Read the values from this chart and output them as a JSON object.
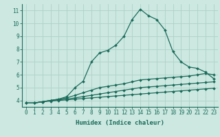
{
  "xlabel": "Humidex (Indice chaleur)",
  "bg_color": "#cce8e0",
  "grid_color": "#aaccC4",
  "line_color": "#1a6b5a",
  "xlim": [
    -0.5,
    23.5
  ],
  "ylim": [
    3.5,
    11.5
  ],
  "yticks": [
    4,
    5,
    6,
    7,
    8,
    9,
    10,
    11
  ],
  "xticks": [
    0,
    1,
    2,
    3,
    4,
    5,
    6,
    7,
    8,
    9,
    10,
    11,
    12,
    13,
    14,
    15,
    16,
    17,
    18,
    19,
    20,
    21,
    22,
    23
  ],
  "series": [
    {
      "x": [
        0,
        1,
        2,
        3,
        4,
        5,
        6,
        7,
        8,
        9,
        10,
        11,
        12,
        13,
        14,
        15,
        16,
        17,
        18,
        19,
        20,
        21,
        22,
        23
      ],
      "y": [
        3.8,
        3.8,
        3.9,
        4.0,
        4.1,
        4.3,
        5.0,
        5.5,
        7.0,
        7.7,
        7.9,
        8.3,
        9.0,
        10.3,
        11.1,
        10.6,
        10.3,
        9.5,
        7.8,
        7.0,
        6.6,
        6.5,
        6.2,
        5.7
      ]
    },
    {
      "x": [
        0,
        1,
        2,
        3,
        4,
        5,
        6,
        7,
        8,
        9,
        10,
        11,
        12,
        13,
        14,
        15,
        16,
        17,
        18,
        19,
        20,
        21,
        22,
        23
      ],
      "y": [
        3.8,
        3.8,
        3.9,
        4.0,
        4.1,
        4.2,
        4.4,
        4.6,
        4.8,
        5.0,
        5.1,
        5.2,
        5.3,
        5.45,
        5.6,
        5.65,
        5.7,
        5.75,
        5.8,
        5.85,
        5.9,
        6.0,
        6.1,
        6.0
      ]
    },
    {
      "x": [
        0,
        1,
        2,
        3,
        4,
        5,
        6,
        7,
        8,
        9,
        10,
        11,
        12,
        13,
        14,
        15,
        16,
        17,
        18,
        19,
        20,
        21,
        22,
        23
      ],
      "y": [
        3.8,
        3.8,
        3.9,
        4.0,
        4.05,
        4.1,
        4.2,
        4.3,
        4.4,
        4.5,
        4.6,
        4.7,
        4.8,
        4.9,
        5.0,
        5.05,
        5.1,
        5.15,
        5.2,
        5.25,
        5.3,
        5.35,
        5.4,
        5.45
      ]
    },
    {
      "x": [
        0,
        1,
        2,
        3,
        4,
        5,
        6,
        7,
        8,
        9,
        10,
        11,
        12,
        13,
        14,
        15,
        16,
        17,
        18,
        19,
        20,
        21,
        22,
        23
      ],
      "y": [
        3.8,
        3.8,
        3.9,
        3.95,
        4.0,
        4.05,
        4.1,
        4.15,
        4.2,
        4.25,
        4.3,
        4.35,
        4.4,
        4.45,
        4.5,
        4.55,
        4.6,
        4.65,
        4.7,
        4.75,
        4.8,
        4.85,
        4.9,
        4.95
      ]
    }
  ],
  "tick_fontsize": 5.5,
  "label_fontsize": 6.5,
  "markersize": 2.0,
  "linewidth": 0.9
}
